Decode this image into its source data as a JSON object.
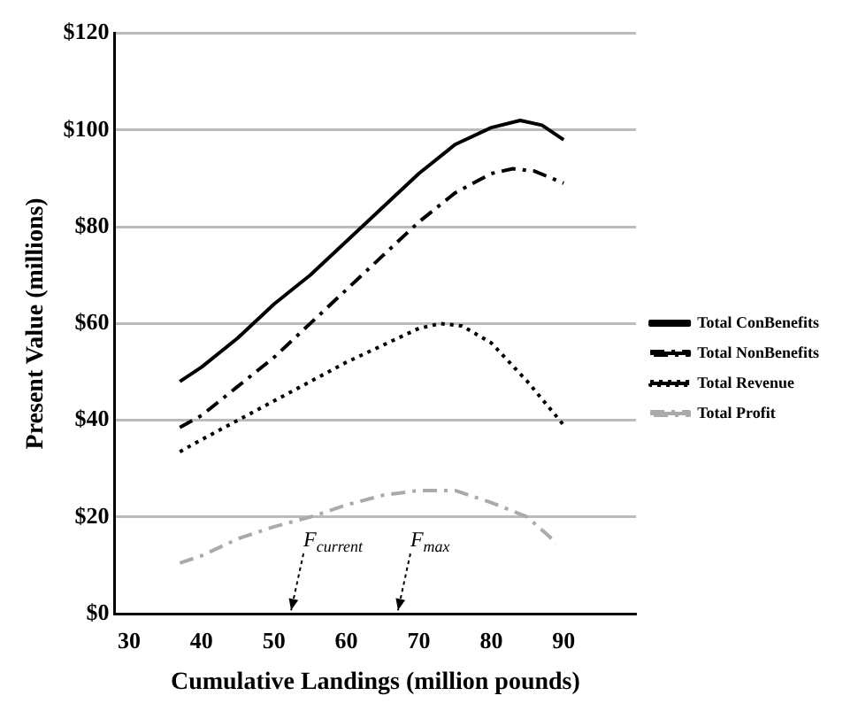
{
  "chart_data": {
    "type": "line",
    "xlabel": "Cumulative Landings (million pounds)",
    "ylabel": "Present Value (millions)",
    "xlim": [
      28,
      100
    ],
    "xticks": [
      30,
      40,
      50,
      60,
      70,
      80,
      90
    ],
    "ylim": [
      0,
      120
    ],
    "yticks": [
      {
        "value": 0,
        "label": "$0"
      },
      {
        "value": 20,
        "label": "$20"
      },
      {
        "value": 40,
        "label": "$40"
      },
      {
        "value": 60,
        "label": "$60"
      },
      {
        "value": 80,
        "label": "$80"
      },
      {
        "value": 100,
        "label": "$100"
      },
      {
        "value": 120,
        "label": "$120"
      }
    ],
    "grid": "y",
    "legend": "right",
    "marker": "none",
    "annotations": [
      "F$_{current}$",
      "F$_{max}$"
    ],
    "series": [
      {
        "name": "Total ConBenefits",
        "color": "#000000",
        "line_style": "solid",
        "x": [
          37,
          40,
          45,
          50,
          55,
          60,
          65,
          70,
          75,
          80,
          84,
          87,
          90
        ],
        "values": [
          48,
          51,
          57,
          64,
          70,
          77,
          84,
          91,
          97,
          100.5,
          102,
          101,
          98
        ]
      },
      {
        "name": "Total NonBenefits",
        "color": "#000000",
        "line_style": "dashed",
        "x": [
          37,
          40,
          45,
          50,
          55,
          60,
          65,
          70,
          75,
          80,
          83,
          86,
          90
        ],
        "values": [
          38.5,
          41,
          47,
          53,
          60,
          67,
          74,
          81,
          87,
          91,
          92,
          91.5,
          89
        ]
      },
      {
        "name": "Total Revenue",
        "color": "#000000",
        "line_style": "dotted",
        "x": [
          37,
          40,
          45,
          50,
          55,
          60,
          65,
          70,
          73,
          76,
          80,
          85,
          90
        ],
        "values": [
          33.5,
          36,
          40,
          44,
          48,
          52,
          55.5,
          59,
          60,
          59.5,
          56,
          48,
          39
        ]
      },
      {
        "name": "Total Profit",
        "color": "#aaaaaa",
        "line_style": "dashed",
        "x": [
          37,
          40,
          45,
          50,
          55,
          60,
          65,
          70,
          75,
          80,
          85,
          88,
          89
        ],
        "values": [
          10.5,
          12,
          15.5,
          18,
          20,
          22.5,
          24.5,
          25.5,
          25.5,
          23,
          20,
          16,
          14.5
        ]
      }
    ]
  }
}
